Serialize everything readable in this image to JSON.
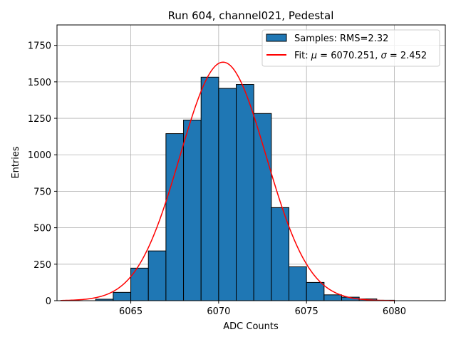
{
  "chart_data": {
    "type": "histogram",
    "title": "Run 604, channel021, Pedestal",
    "xlabel": "ADC Counts",
    "ylabel": "Entries",
    "xlim": [
      6060.8,
      6082.9
    ],
    "ylim": [
      0,
      1890
    ],
    "xticks": [
      6065,
      6070,
      6075,
      6080
    ],
    "yticks": [
      0,
      250,
      500,
      750,
      1000,
      1250,
      1500,
      1750
    ],
    "grid": true,
    "legend_position": "top-right",
    "bar_color": "#1f77b4",
    "fit_color": "#ff0000",
    "bins": [
      {
        "x0": 6063,
        "x1": 6064,
        "count": 10
      },
      {
        "x0": 6064,
        "x1": 6065,
        "count": 57
      },
      {
        "x0": 6065,
        "x1": 6066,
        "count": 223
      },
      {
        "x0": 6066,
        "x1": 6067,
        "count": 341
      },
      {
        "x0": 6067,
        "x1": 6068,
        "count": 1145
      },
      {
        "x0": 6068,
        "x1": 6069,
        "count": 1238
      },
      {
        "x0": 6069,
        "x1": 6070,
        "count": 1532
      },
      {
        "x0": 6070,
        "x1": 6071,
        "count": 1455
      },
      {
        "x0": 6071,
        "x1": 6072,
        "count": 1482
      },
      {
        "x0": 6072,
        "x1": 6073,
        "count": 1283
      },
      {
        "x0": 6073,
        "x1": 6074,
        "count": 638
      },
      {
        "x0": 6074,
        "x1": 6075,
        "count": 232
      },
      {
        "x0": 6075,
        "x1": 6076,
        "count": 125
      },
      {
        "x0": 6076,
        "x1": 6077,
        "count": 40
      },
      {
        "x0": 6077,
        "x1": 6078,
        "count": 24
      },
      {
        "x0": 6078,
        "x1": 6079,
        "count": 12
      },
      {
        "x0": 6079,
        "x1": 6080,
        "count": 3
      }
    ],
    "fit": {
      "mu": 6070.251,
      "sigma": 2.452,
      "peak": 1635,
      "x_range": [
        6061,
        6080
      ]
    },
    "legend": [
      {
        "kind": "patch",
        "label": "Samples: RMS=2.32"
      },
      {
        "kind": "line",
        "label_prefix": "Fit: ",
        "label_parts": [
          "μ",
          " = 6070.251, ",
          "σ",
          " = 2.452"
        ]
      }
    ]
  }
}
